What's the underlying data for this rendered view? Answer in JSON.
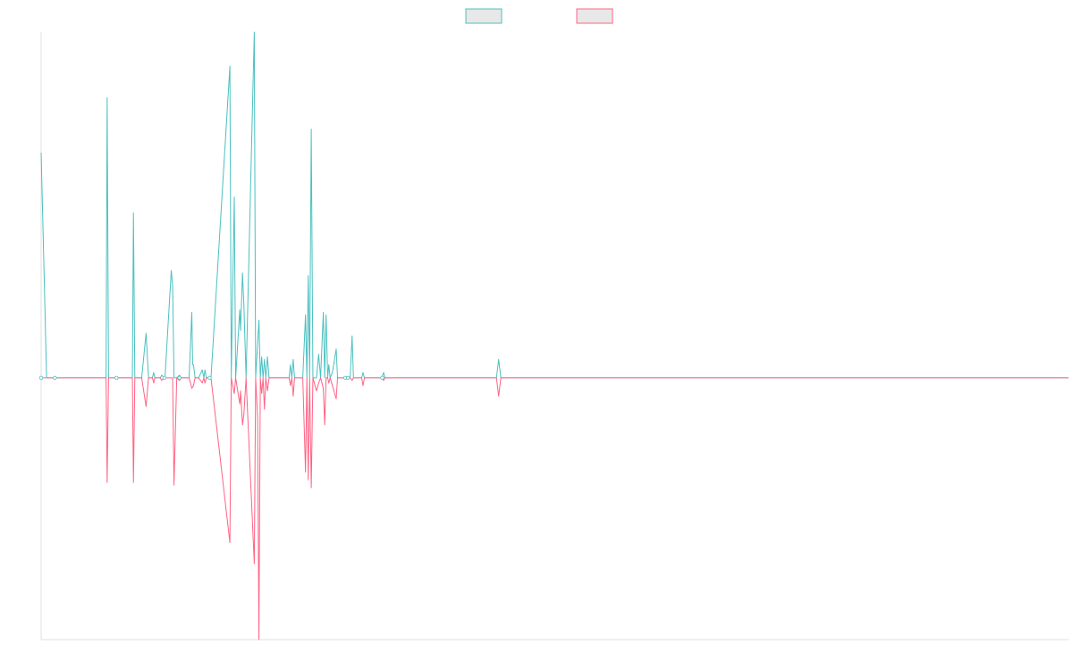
{
  "chart_data": {
    "type": "line",
    "title": "",
    "xlabel": "",
    "ylabel": "",
    "legend": "top-center",
    "grid": false,
    "ylim": [
      -1.0,
      1.32
    ],
    "colors": {
      "positive": "#4bc0c0",
      "negative": "#ff6384",
      "axis": "#e0e0e0"
    },
    "series": [
      {
        "name": "",
        "color": "#4bc0c0",
        "points": [
          [
            0.0,
            0.86
          ],
          [
            2.0,
            0.0
          ],
          [
            14.5,
            0.0
          ],
          [
            23.7,
            0.0
          ],
          [
            24.1,
            1.07
          ],
          [
            24.6,
            0.0
          ],
          [
            33.3,
            0.0
          ],
          [
            33.7,
            0.63
          ],
          [
            34.2,
            0.0
          ],
          [
            36.7,
            0.0
          ],
          [
            38.3,
            0.17
          ],
          [
            39.2,
            0.0
          ],
          [
            40.6,
            0.0
          ],
          [
            41.1,
            0.02
          ],
          [
            41.5,
            0.0
          ],
          [
            43.5,
            0.0
          ],
          [
            44.0,
            0.01
          ],
          [
            44.9,
            0.0
          ],
          [
            45.2,
            0.0
          ],
          [
            47.5,
            0.41
          ],
          [
            48.0,
            0.35
          ],
          [
            48.5,
            0.0
          ],
          [
            49.5,
            0.0
          ],
          [
            50.5,
            0.01
          ],
          [
            51.2,
            0.0
          ],
          [
            54.0,
            0.0
          ],
          [
            55.0,
            0.25
          ],
          [
            55.3,
            0.05
          ],
          [
            55.6,
            0.05
          ],
          [
            56.2,
            0.0
          ],
          [
            57.5,
            0.0
          ],
          [
            58.8,
            0.03
          ],
          [
            59.4,
            0.0
          ],
          [
            59.8,
            0.03
          ],
          [
            60.3,
            0.0
          ],
          [
            62.0,
            0.0
          ],
          [
            68.9,
            1.19
          ],
          [
            69.4,
            0.0
          ],
          [
            70.5,
            0.69
          ],
          [
            71.0,
            0.0
          ],
          [
            72.5,
            0.26
          ],
          [
            72.8,
            0.18
          ],
          [
            73.5,
            0.4
          ],
          [
            74.0,
            0.28
          ],
          [
            74.8,
            0.0
          ],
          [
            77.8,
            1.32
          ],
          [
            78.3,
            0.0
          ],
          [
            79.5,
            0.22
          ],
          [
            80.0,
            0.0
          ],
          [
            80.5,
            0.08
          ],
          [
            81.0,
            0.0
          ],
          [
            81.5,
            0.07
          ],
          [
            82.0,
            0.0
          ],
          [
            82.6,
            0.08
          ],
          [
            83.2,
            0.0
          ],
          [
            90.5,
            0.0
          ],
          [
            91.0,
            0.05
          ],
          [
            91.5,
            0.0
          ],
          [
            92.0,
            0.07
          ],
          [
            92.5,
            0.0
          ],
          [
            95.5,
            0.0
          ],
          [
            96.5,
            0.24
          ],
          [
            97.0,
            0.0
          ],
          [
            97.5,
            0.39
          ],
          [
            98.0,
            0.0
          ],
          [
            98.6,
            0.95
          ],
          [
            99.2,
            0.0
          ],
          [
            100.5,
            0.0
          ],
          [
            101.3,
            0.09
          ],
          [
            102.0,
            0.0
          ],
          [
            103.0,
            0.25
          ],
          [
            103.5,
            0.0
          ],
          [
            104.0,
            0.24
          ],
          [
            104.6,
            0.0
          ],
          [
            105.0,
            0.05
          ],
          [
            105.5,
            0.0
          ],
          [
            106.3,
            0.02
          ],
          [
            107.7,
            0.11
          ],
          [
            108.2,
            0.0
          ],
          [
            110.0,
            0.0
          ],
          [
            111.0,
            0.0
          ],
          [
            112.8,
            0.0
          ],
          [
            113.5,
            0.16
          ],
          [
            114.0,
            0.0
          ],
          [
            117.0,
            0.0
          ],
          [
            117.5,
            0.02
          ],
          [
            118.0,
            0.0
          ],
          [
            124.3,
            0.0
          ],
          [
            125.0,
            0.02
          ],
          [
            125.5,
            0.0
          ],
          [
            166.2,
            0.0
          ],
          [
            167.0,
            0.07
          ],
          [
            167.8,
            0.0
          ],
          [
            375.0,
            0.0
          ]
        ]
      },
      {
        "name": "",
        "color": "#ff6384",
        "points": [
          [
            0.0,
            0.0
          ],
          [
            2.0,
            0.0
          ],
          [
            14.5,
            0.0
          ],
          [
            23.7,
            0.0
          ],
          [
            24.1,
            -0.4
          ],
          [
            24.6,
            0.0
          ],
          [
            33.3,
            0.0
          ],
          [
            33.7,
            -0.4
          ],
          [
            34.2,
            0.0
          ],
          [
            36.7,
            0.0
          ],
          [
            38.3,
            -0.11
          ],
          [
            39.2,
            0.0
          ],
          [
            40.6,
            0.0
          ],
          [
            41.1,
            -0.02
          ],
          [
            41.5,
            0.0
          ],
          [
            43.5,
            0.0
          ],
          [
            44.0,
            -0.01
          ],
          [
            44.9,
            0.0
          ],
          [
            45.2,
            0.0
          ],
          [
            47.5,
            0.0
          ],
          [
            48.0,
            0.0
          ],
          [
            48.5,
            -0.41
          ],
          [
            49.5,
            0.0
          ],
          [
            50.5,
            -0.01
          ],
          [
            51.2,
            0.0
          ],
          [
            54.0,
            0.0
          ],
          [
            55.0,
            -0.04
          ],
          [
            55.6,
            -0.03
          ],
          [
            56.2,
            0.0
          ],
          [
            57.5,
            0.0
          ],
          [
            58.8,
            -0.02
          ],
          [
            59.4,
            0.0
          ],
          [
            59.8,
            -0.02
          ],
          [
            60.3,
            0.0
          ],
          [
            62.0,
            0.0
          ],
          [
            68.9,
            -0.63
          ],
          [
            69.4,
            0.0
          ],
          [
            70.5,
            -0.06
          ],
          [
            71.0,
            0.0
          ],
          [
            72.5,
            -0.1
          ],
          [
            72.8,
            -0.05
          ],
          [
            73.5,
            -0.18
          ],
          [
            74.0,
            -0.14
          ],
          [
            74.8,
            0.0
          ],
          [
            77.8,
            -0.71
          ],
          [
            78.3,
            0.0
          ],
          [
            79.0,
            -0.15
          ],
          [
            79.5,
            -1.0
          ],
          [
            80.0,
            0.0
          ],
          [
            80.5,
            -0.06
          ],
          [
            81.0,
            0.0
          ],
          [
            81.5,
            -0.12
          ],
          [
            82.0,
            0.0
          ],
          [
            82.6,
            -0.05
          ],
          [
            83.2,
            0.0
          ],
          [
            90.5,
            0.0
          ],
          [
            91.0,
            -0.03
          ],
          [
            91.5,
            0.0
          ],
          [
            92.0,
            -0.07
          ],
          [
            92.5,
            0.0
          ],
          [
            95.5,
            0.0
          ],
          [
            96.5,
            -0.36
          ],
          [
            97.0,
            0.0
          ],
          [
            97.5,
            -0.39
          ],
          [
            98.0,
            0.0
          ],
          [
            98.6,
            -0.42
          ],
          [
            99.2,
            0.0
          ],
          [
            100.5,
            -0.05
          ],
          [
            101.3,
            -0.02
          ],
          [
            102.0,
            0.0
          ],
          [
            103.0,
            -0.04
          ],
          [
            103.5,
            -0.18
          ],
          [
            104.0,
            0.0
          ],
          [
            104.6,
            0.0
          ],
          [
            105.0,
            -0.02
          ],
          [
            105.5,
            0.0
          ],
          [
            106.3,
            -0.03
          ],
          [
            107.7,
            -0.08
          ],
          [
            108.2,
            0.0
          ],
          [
            110.0,
            0.0
          ],
          [
            111.0,
            0.0
          ],
          [
            112.8,
            0.0
          ],
          [
            113.5,
            -0.01
          ],
          [
            114.0,
            0.0
          ],
          [
            117.0,
            0.0
          ],
          [
            117.5,
            -0.03
          ],
          [
            118.0,
            0.0
          ],
          [
            124.3,
            0.0
          ],
          [
            125.0,
            -0.01
          ],
          [
            125.5,
            0.0
          ],
          [
            166.2,
            0.0
          ],
          [
            167.0,
            -0.07
          ],
          [
            167.8,
            0.0
          ],
          [
            375.0,
            0.0
          ]
        ]
      }
    ],
    "xlim": [
      0,
      375
    ],
    "markers_on_baseline_at": [
      0,
      5,
      27.5,
      45,
      50.5,
      61.5,
      111,
      112,
      124.5
    ]
  }
}
